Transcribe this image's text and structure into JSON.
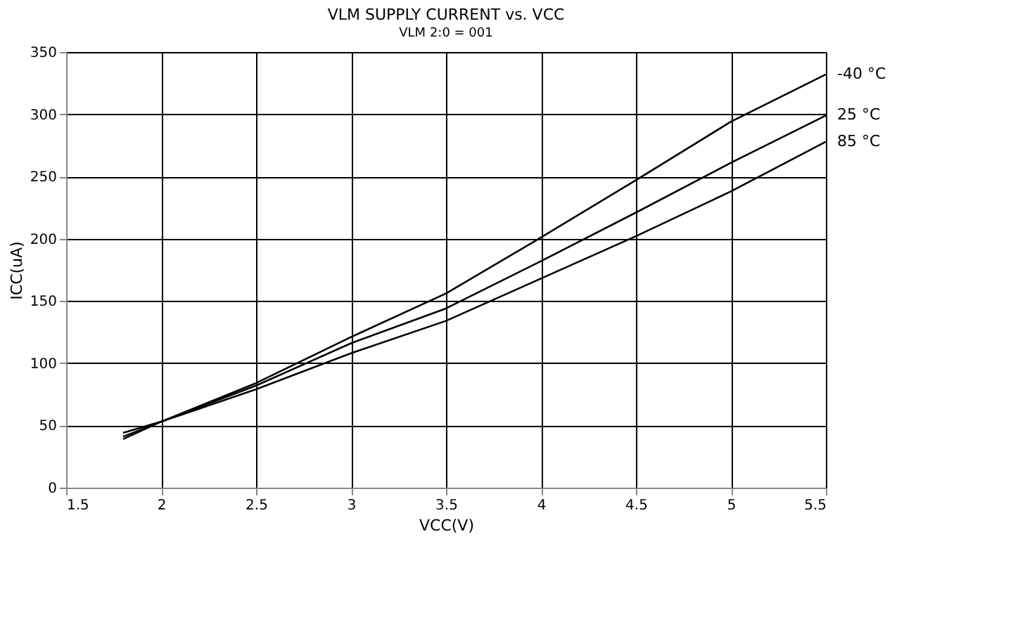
{
  "chart_data": {
    "type": "line",
    "title": "VLM SUPPLY CURRENT vs. VCC",
    "subtitle": "VLM 2:0 = 001",
    "xlabel": "VCC(V)",
    "ylabel": "ICC(uA)",
    "x": [
      1.8,
      2,
      2.5,
      3,
      3.5,
      4,
      4.5,
      5,
      5.5
    ],
    "series": [
      {
        "name": "-40 °C",
        "color": "#000000",
        "values": [
          39,
          53,
          84,
          121,
          156,
          201,
          247,
          294,
          332
        ]
      },
      {
        "name": "25 °C",
        "color": "#000000",
        "values": [
          41,
          53,
          82,
          116,
          144,
          182,
          221,
          261,
          299
        ]
      },
      {
        "name": "85 °C",
        "color": "#000000",
        "values": [
          44,
          53,
          79,
          108,
          134,
          168,
          202,
          238,
          278
        ]
      }
    ],
    "xlim": [
      1.5,
      5.5
    ],
    "xticks": [
      1.5,
      2,
      2.5,
      3,
      3.5,
      4,
      4.5,
      5,
      5.5
    ],
    "ylim": [
      0,
      350
    ],
    "yticks": [
      0,
      50,
      100,
      150,
      200,
      250,
      300,
      350
    ],
    "grid": true,
    "legend": false,
    "marker": "none",
    "line_style": "solid"
  }
}
